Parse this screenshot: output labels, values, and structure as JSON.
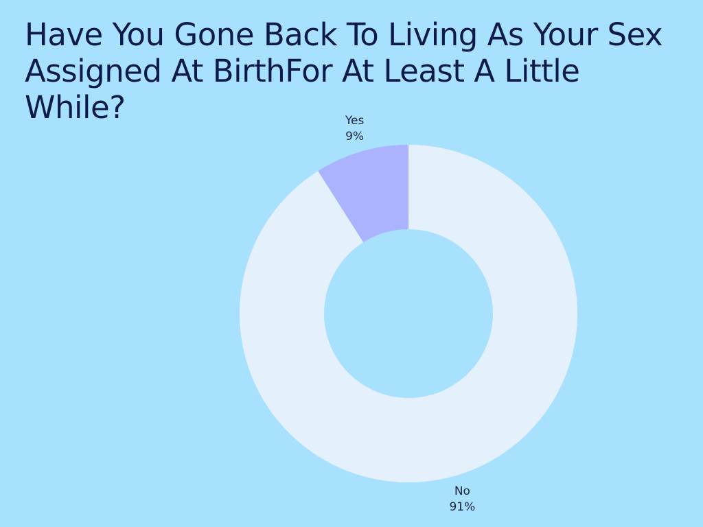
{
  "chart_data": {
    "type": "pie",
    "donut": true,
    "title": "Have You Gone Back To Living As Your Sex Assigned At BirthFor At Least A Little While?",
    "categories": [
      "Yes",
      "No"
    ],
    "values": [
      9,
      91
    ],
    "value_labels": [
      "9%",
      "91%"
    ],
    "colors": [
      "#abb3fe",
      "#e4f1fd"
    ]
  }
}
